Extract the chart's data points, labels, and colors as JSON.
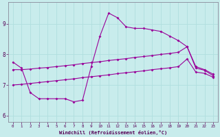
{
  "xlabel": "Windchill (Refroidissement éolien,°C)",
  "bg_color": "#c8ecec",
  "line_color": "#990099",
  "grid_color": "#b0dede",
  "xlim": [
    -0.5,
    23.5
  ],
  "ylim": [
    5.8,
    9.7
  ],
  "xticks": [
    0,
    1,
    2,
    3,
    4,
    5,
    6,
    7,
    8,
    9,
    10,
    11,
    12,
    13,
    14,
    15,
    16,
    17,
    18,
    19,
    20,
    21,
    22,
    23
  ],
  "yticks": [
    6,
    7,
    8,
    9
  ],
  "series": [
    {
      "x": [
        0,
        1,
        2,
        3,
        4,
        5,
        6,
        7,
        8,
        9,
        10,
        11,
        12,
        13,
        14,
        15,
        16,
        17,
        18,
        19,
        20,
        21,
        22,
        23
      ],
      "y": [
        7.75,
        7.55,
        6.75,
        6.55,
        6.55,
        6.55,
        6.55,
        6.45,
        6.5,
        7.6,
        8.6,
        9.35,
        9.2,
        8.9,
        8.85,
        8.85,
        8.8,
        8.75,
        8.6,
        8.45,
        8.25,
        7.6,
        7.5,
        7.35
      ]
    },
    {
      "x": [
        0,
        1,
        2,
        3,
        4,
        5,
        6,
        7,
        8,
        9,
        10,
        11,
        12,
        13,
        14,
        15,
        16,
        17,
        18,
        19,
        20,
        21,
        22,
        23
      ],
      "y": [
        7.5,
        7.5,
        7.52,
        7.55,
        7.57,
        7.6,
        7.63,
        7.66,
        7.7,
        7.73,
        7.76,
        7.8,
        7.83,
        7.86,
        7.9,
        7.93,
        7.96,
        8.0,
        8.03,
        8.07,
        8.25,
        7.55,
        7.48,
        7.3
      ]
    },
    {
      "x": [
        0,
        1,
        2,
        3,
        4,
        5,
        6,
        7,
        8,
        9,
        10,
        11,
        12,
        13,
        14,
        15,
        16,
        17,
        18,
        19,
        20,
        21,
        22,
        23
      ],
      "y": [
        7.0,
        7.02,
        7.05,
        7.08,
        7.11,
        7.14,
        7.17,
        7.2,
        7.24,
        7.27,
        7.3,
        7.33,
        7.37,
        7.4,
        7.43,
        7.46,
        7.5,
        7.53,
        7.56,
        7.6,
        7.85,
        7.42,
        7.38,
        7.25
      ]
    }
  ]
}
